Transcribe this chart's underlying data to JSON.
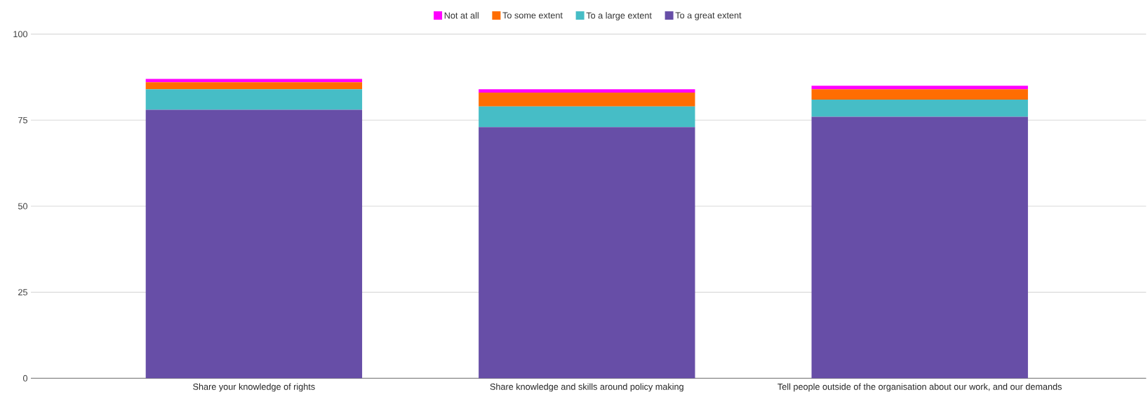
{
  "chart_data": {
    "type": "bar",
    "stacked": true,
    "categories": [
      "Share your knowledge of rights",
      "Share knowledge and skills around policy making",
      "Tell people outside of the organisation about our work, and our demands"
    ],
    "series": [
      {
        "name": "To a great extent",
        "color": "#674ea7",
        "values": [
          78,
          73,
          76
        ]
      },
      {
        "name": "To a large extent",
        "color": "#46bdc6",
        "values": [
          6,
          6,
          5
        ]
      },
      {
        "name": "To some extent",
        "color": "#ff6d01",
        "values": [
          2,
          4,
          3
        ]
      },
      {
        "name": "Not at all",
        "color": "#ff00ff",
        "values": [
          1,
          1,
          1
        ]
      }
    ],
    "ylim": [
      0,
      100
    ],
    "yticks": [
      0,
      25,
      50,
      75,
      100
    ],
    "grid": "y",
    "legend": "top"
  }
}
